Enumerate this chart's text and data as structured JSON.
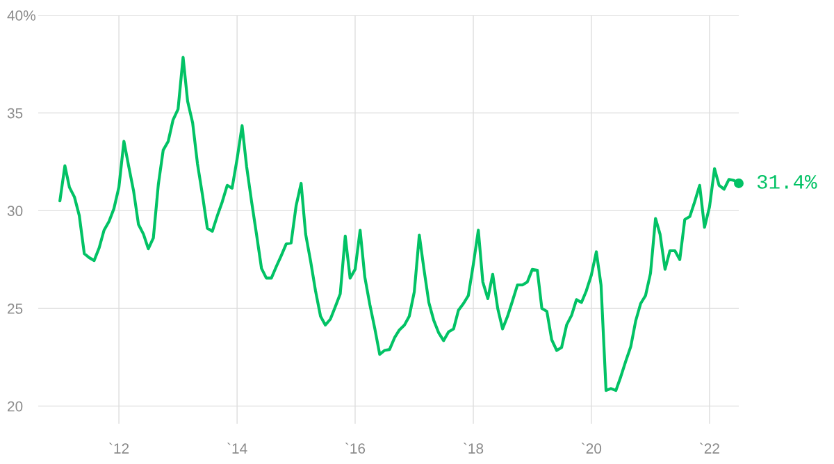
{
  "chart_data": {
    "type": "line",
    "x": [
      "2011-01",
      "2011-02",
      "2011-03",
      "2011-04",
      "2011-05",
      "2011-06",
      "2011-07",
      "2011-08",
      "2011-09",
      "2011-10",
      "2011-11",
      "2011-12",
      "2012-01",
      "2012-02",
      "2012-03",
      "2012-04",
      "2012-05",
      "2012-06",
      "2012-07",
      "2012-08",
      "2012-09",
      "2012-10",
      "2012-11",
      "2012-12",
      "2013-01",
      "2013-02",
      "2013-03",
      "2013-04",
      "2013-05",
      "2013-06",
      "2013-07",
      "2013-08",
      "2013-09",
      "2013-10",
      "2013-11",
      "2013-12",
      "2014-01",
      "2014-02",
      "2014-03",
      "2014-04",
      "2014-05",
      "2014-06",
      "2014-07",
      "2014-08",
      "2014-09",
      "2014-10",
      "2014-11",
      "2014-12",
      "2015-01",
      "2015-02",
      "2015-03",
      "2015-04",
      "2015-05",
      "2015-06",
      "2015-07",
      "2015-08",
      "2015-09",
      "2015-10",
      "2015-11",
      "2015-12",
      "2016-01",
      "2016-02",
      "2016-03",
      "2016-04",
      "2016-05",
      "2016-06",
      "2016-07",
      "2016-08",
      "2016-09",
      "2016-10",
      "2016-11",
      "2016-12",
      "2017-01",
      "2017-02",
      "2017-03",
      "2017-04",
      "2017-05",
      "2017-06",
      "2017-07",
      "2017-08",
      "2017-09",
      "2017-10",
      "2017-11",
      "2017-12",
      "2018-01",
      "2018-02",
      "2018-03",
      "2018-04",
      "2018-05",
      "2018-06",
      "2018-07",
      "2018-08",
      "2018-09",
      "2018-10",
      "2018-11",
      "2018-12",
      "2019-01",
      "2019-02",
      "2019-03",
      "2019-04",
      "2019-05",
      "2019-06",
      "2019-07",
      "2019-08",
      "2019-09",
      "2019-10",
      "2019-11",
      "2019-12",
      "2020-01",
      "2020-02",
      "2020-03",
      "2020-04",
      "2020-05",
      "2020-06",
      "2020-07",
      "2020-08",
      "2020-09",
      "2020-10",
      "2020-11",
      "2020-12",
      "2021-01",
      "2021-02",
      "2021-03",
      "2021-04",
      "2021-05",
      "2021-06",
      "2021-07",
      "2021-08",
      "2021-09",
      "2021-10",
      "2021-11",
      "2021-12",
      "2022-01",
      "2022-02",
      "2022-03",
      "2022-04",
      "2022-05",
      "2022-06",
      "2022-07"
    ],
    "series": [
      {
        "color": "#02c265",
        "values": [
          30.5,
          32.3,
          31.2,
          30.7,
          29.75,
          27.8,
          27.6,
          27.45,
          28.1,
          29.0,
          29.45,
          30.1,
          31.2,
          33.55,
          32.3,
          31.0,
          29.3,
          28.8,
          28.05,
          28.6,
          31.35,
          33.1,
          33.55,
          34.65,
          35.2,
          37.85,
          35.6,
          34.5,
          32.4,
          30.8,
          29.1,
          28.95,
          29.75,
          30.45,
          31.3,
          31.15,
          32.65,
          34.35,
          32.25,
          30.45,
          28.8,
          27.05,
          26.55,
          26.55,
          27.15,
          27.7,
          28.3,
          28.35,
          30.25,
          31.4,
          28.8,
          27.4,
          25.9,
          24.6,
          24.15,
          24.45,
          25.1,
          25.75,
          28.7,
          26.55,
          27.0,
          29.0,
          26.6,
          25.2,
          24.0,
          22.65,
          22.85,
          22.9,
          23.5,
          23.9,
          24.15,
          24.6,
          25.85,
          28.75,
          27.05,
          25.3,
          24.4,
          23.75,
          23.35,
          23.8,
          23.95,
          24.9,
          25.25,
          25.65,
          27.25,
          29.0,
          26.35,
          25.5,
          26.75,
          25.0,
          23.95,
          24.6,
          25.4,
          26.2,
          26.2,
          26.35,
          27.0,
          26.95,
          25.0,
          24.85,
          23.4,
          22.85,
          23.0,
          24.15,
          24.65,
          25.45,
          25.3,
          25.9,
          26.7,
          27.9,
          26.2,
          20.8,
          20.9,
          20.8,
          21.5,
          22.3,
          23.05,
          24.35,
          25.25,
          25.65,
          26.8,
          29.6,
          28.8,
          27.0,
          27.95,
          27.95,
          27.5,
          29.55,
          29.7,
          30.45,
          31.3,
          29.15,
          30.2,
          32.15,
          31.3,
          31.1,
          31.6,
          31.55,
          31.4
        ]
      }
    ],
    "xlim": [
      "2010-08-20",
      "2022-07-01"
    ],
    "xticks": [
      {
        "value": "2012-01-01",
        "label": "`12"
      },
      {
        "value": "2014-01-01",
        "label": "`14"
      },
      {
        "value": "2016-01-01",
        "label": "`16"
      },
      {
        "value": "2018-01-01",
        "label": "`18"
      },
      {
        "value": "2020-01-01",
        "label": "`20"
      },
      {
        "value": "2022-01-01",
        "label": "`22"
      }
    ],
    "ylim": [
      19.1,
      40
    ],
    "yticks": [
      20,
      25,
      30,
      35,
      {
        "value": 40,
        "label": "40%"
      }
    ],
    "grid": true,
    "annotations": [
      {
        "text": "31.4%",
        "x": "2022-07",
        "y": 31.4
      }
    ]
  }
}
